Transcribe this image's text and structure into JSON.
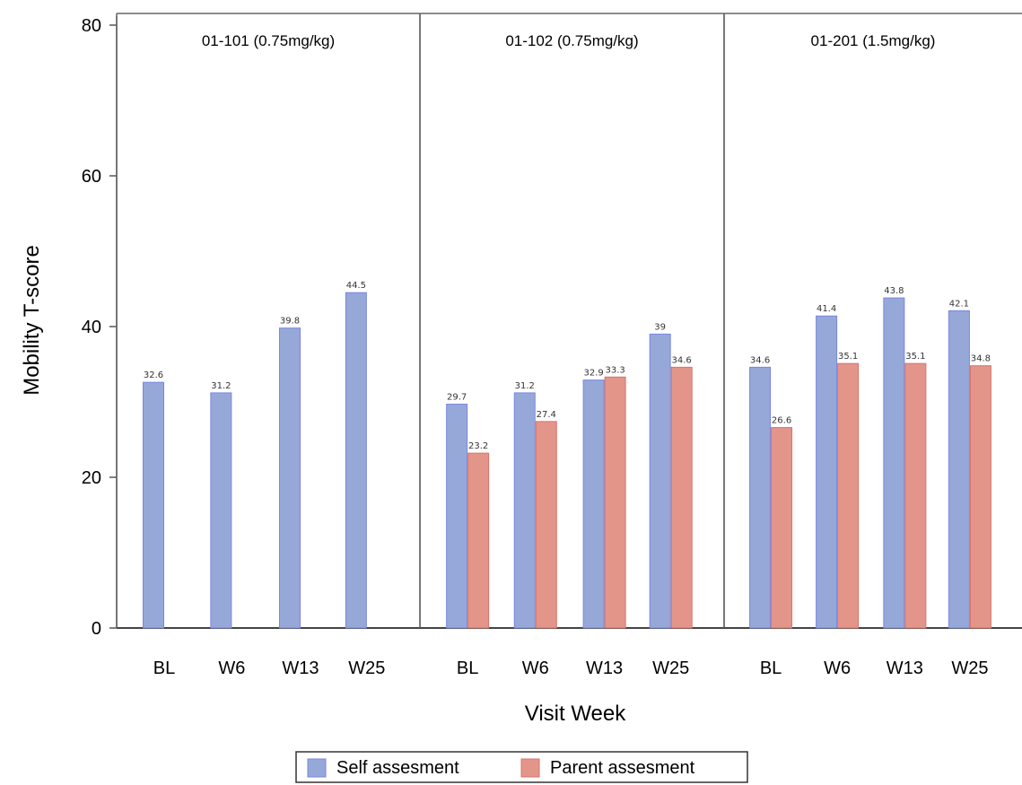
{
  "chart_data": {
    "type": "bar",
    "ylabel": "Mobility T-score",
    "xlabel": "Visit Week",
    "ylim": [
      0,
      80
    ],
    "yticks": [
      0,
      20,
      40,
      60,
      80
    ],
    "categories": [
      "BL",
      "W6",
      "W13",
      "W25"
    ],
    "grid": false,
    "legend_position": "bottom-center",
    "series_meta": [
      {
        "name": "Self assesment",
        "color": "#96a8d8",
        "stroke": "#7a86e0"
      },
      {
        "name": "Parent assesment",
        "color": "#e39589",
        "stroke": "#d9736a"
      }
    ],
    "panels": [
      {
        "title": "01-101 (0.75mg/kg)",
        "series": [
          {
            "name": "Self assesment",
            "values": [
              32.6,
              31.2,
              39.8,
              44.5
            ],
            "labels": [
              "32.6",
              "31.2",
              "39.8",
              "44.5"
            ]
          },
          {
            "name": "Parent assesment",
            "values": [
              null,
              null,
              null,
              null
            ],
            "labels": [
              "",
              "",
              "",
              ""
            ]
          }
        ]
      },
      {
        "title": "01-102 (0.75mg/kg)",
        "series": [
          {
            "name": "Self assesment",
            "values": [
              29.7,
              31.2,
              32.9,
              39
            ],
            "labels": [
              "29.7",
              "31.2",
              "32.9",
              "39"
            ]
          },
          {
            "name": "Parent assesment",
            "values": [
              23.2,
              27.4,
              33.3,
              34.6
            ],
            "labels": [
              "23.2",
              "27.4",
              "33.3",
              "34.6"
            ]
          }
        ]
      },
      {
        "title": "01-201 (1.5mg/kg)",
        "series": [
          {
            "name": "Self assesment",
            "values": [
              34.6,
              41.4,
              43.8,
              42.1
            ],
            "labels": [
              "34.6",
              "41.4",
              "43.8",
              "42.1"
            ]
          },
          {
            "name": "Parent assesment",
            "values": [
              26.6,
              35.1,
              35.1,
              34.8
            ],
            "labels": [
              "26.6",
              "35.1",
              "35.1",
              "34.8"
            ]
          }
        ]
      }
    ],
    "legend": [
      "Self assesment",
      "Parent assesment"
    ]
  }
}
